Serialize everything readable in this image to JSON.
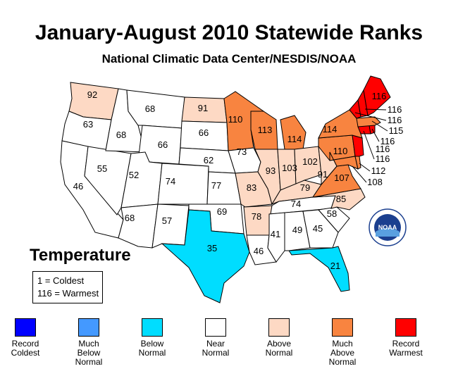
{
  "title": "January-August 2010 Statewide Ranks",
  "subtitle": "National Climatic Data Center/NESDIS/NOAA",
  "temperature_label": "Temperature",
  "key": {
    "line1": "1 = Coldest",
    "line2": "116 = Warmest"
  },
  "logo_text": "NOAA",
  "legend": [
    {
      "label1": "Record",
      "label2": "Coldest",
      "label3": "",
      "color": "#0000ff"
    },
    {
      "label1": "Much",
      "label2": "Below",
      "label3": "Normal",
      "color": "#4499ff"
    },
    {
      "label1": "Below",
      "label2": "Normal",
      "label3": "",
      "color": "#00ddff"
    },
    {
      "label1": "Near",
      "label2": "Normal",
      "label3": "",
      "color": "#ffffff"
    },
    {
      "label1": "Above",
      "label2": "Normal",
      "label3": "",
      "color": "#fdd9c4"
    },
    {
      "label1": "Much",
      "label2": "Above",
      "label3": "Normal",
      "color": "#f88440"
    },
    {
      "label1": "Record",
      "label2": "Warmest",
      "label3": "",
      "color": "#ff0000"
    }
  ],
  "states": {
    "WA": {
      "rank": "92",
      "category": "Above Normal"
    },
    "OR": {
      "rank": "63",
      "category": "Near Normal"
    },
    "CA": {
      "rank": "46",
      "category": "Near Normal"
    },
    "NV": {
      "rank": "55",
      "category": "Near Normal"
    },
    "ID": {
      "rank": "68",
      "category": "Near Normal"
    },
    "MT": {
      "rank": "68",
      "category": "Near Normal"
    },
    "WY": {
      "rank": "66",
      "category": "Near Normal"
    },
    "UT": {
      "rank": "52",
      "category": "Near Normal"
    },
    "AZ": {
      "rank": "68",
      "category": "Near Normal"
    },
    "CO": {
      "rank": "74",
      "category": "Near Normal"
    },
    "NM": {
      "rank": "57",
      "category": "Near Normal"
    },
    "ND": {
      "rank": "91",
      "category": "Above Normal"
    },
    "SD": {
      "rank": "66",
      "category": "Near Normal"
    },
    "NE": {
      "rank": "62",
      "category": "Near Normal"
    },
    "KS": {
      "rank": "77",
      "category": "Near Normal"
    },
    "OK": {
      "rank": "69",
      "category": "Near Normal"
    },
    "TX": {
      "rank": "35",
      "category": "Below Normal"
    },
    "MN": {
      "rank": "110",
      "category": "Much Above Normal"
    },
    "IA": {
      "rank": "73",
      "category": "Near Normal"
    },
    "MO": {
      "rank": "83",
      "category": "Above Normal"
    },
    "AR": {
      "rank": "78",
      "category": "Above Normal"
    },
    "LA": {
      "rank": "46",
      "category": "Near Normal"
    },
    "WI": {
      "rank": "113",
      "category": "Much Above Normal"
    },
    "IL": {
      "rank": "93",
      "category": "Above Normal"
    },
    "MI": {
      "rank": "114",
      "category": "Much Above Normal"
    },
    "IN": {
      "rank": "103",
      "category": "Above Normal"
    },
    "OH": {
      "rank": "102",
      "category": "Above Normal"
    },
    "KY": {
      "rank": "79",
      "category": "Above Normal"
    },
    "TN": {
      "rank": "74",
      "category": "Near Normal"
    },
    "MS": {
      "rank": "41",
      "category": "Near Normal"
    },
    "AL": {
      "rank": "49",
      "category": "Near Normal"
    },
    "GA": {
      "rank": "45",
      "category": "Near Normal"
    },
    "FL": {
      "rank": "21",
      "category": "Below Normal"
    },
    "SC": {
      "rank": "58",
      "category": "Near Normal"
    },
    "NC": {
      "rank": "85",
      "category": "Above Normal"
    },
    "VA": {
      "rank": "107",
      "category": "Much Above Normal"
    },
    "WV": {
      "rank": "91",
      "category": "Above Normal"
    },
    "PA": {
      "rank": "110",
      "category": "Much Above Normal"
    },
    "NY": {
      "rank": "114",
      "category": "Much Above Normal"
    },
    "ME": {
      "rank": "116",
      "category": "Record Warmest"
    },
    "NH": {
      "rank": "116",
      "category": "Record Warmest"
    },
    "VT": {
      "rank": "116",
      "category": "Record Warmest"
    },
    "MA": {
      "rank": "115",
      "category": "Much Above Normal"
    },
    "RI": {
      "rank": "116",
      "category": "Record Warmest"
    },
    "CT": {
      "rank": "116",
      "category": "Record Warmest"
    },
    "NJ": {
      "rank": "116",
      "category": "Record Warmest"
    },
    "DE": {
      "rank": "112",
      "category": "Much Above Normal"
    },
    "MD": {
      "rank": "108",
      "category": "Much Above Normal"
    }
  },
  "category_colors": {
    "Below Normal": "#00ddff",
    "Near Normal": "#ffffff",
    "Above Normal": "#fdd9c4",
    "Much Above Normal": "#f88440",
    "Record Warmest": "#ff0000"
  }
}
